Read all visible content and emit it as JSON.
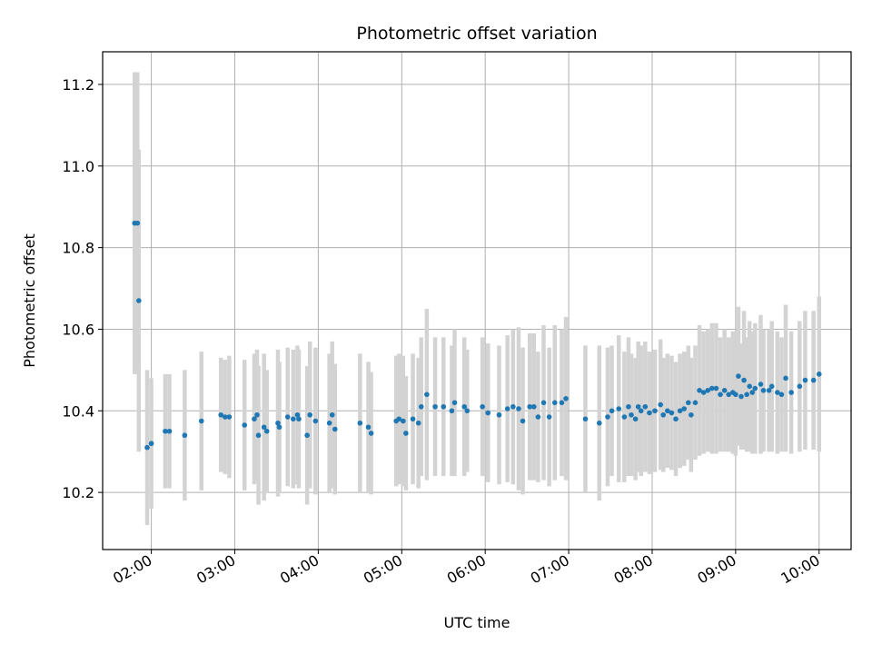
{
  "chart_data": {
    "type": "scatter",
    "title": "Photometric offset variation",
    "xlabel": "UTC time",
    "ylabel": "Photometric offset",
    "x_ticks": [
      "02:00",
      "03:00",
      "04:00",
      "05:00",
      "06:00",
      "07:00",
      "08:00",
      "09:00",
      "10:00"
    ],
    "y_ticks": [
      "10.2",
      "10.4",
      "10.6",
      "10.8",
      "11.0",
      "11.2"
    ],
    "xlim": [
      "01:25",
      "10:23"
    ],
    "ylim": [
      10.06,
      11.28
    ],
    "grid": true,
    "colors": {
      "points": "#1f77b4",
      "errorbars": "#d3d3d3",
      "grid": "#b0b0b0"
    },
    "series": [
      {
        "x": [
          "01:48",
          "01:50",
          "01:51",
          "01:57",
          "02:00",
          "02:10",
          "02:13",
          "02:24",
          "02:36",
          "02:50",
          "02:53",
          "02:56",
          "03:07",
          "03:14",
          "03:16",
          "03:17",
          "03:21",
          "03:23",
          "03:31",
          "03:32",
          "03:38",
          "03:42",
          "03:45",
          "03:46",
          "03:52",
          "03:54",
          "03:58",
          "04:08",
          "04:10",
          "04:12",
          "04:30",
          "04:36",
          "04:38",
          "04:56",
          "04:58",
          "05:01",
          "05:03",
          "05:08",
          "05:12",
          "05:14",
          "05:18",
          "05:24",
          "05:30",
          "05:36",
          "05:38",
          "05:45",
          "05:47",
          "05:58",
          "06:02",
          "06:10",
          "06:16",
          "06:20",
          "06:24",
          "06:27",
          "06:32",
          "06:35",
          "06:38",
          "06:42",
          "06:46",
          "06:50",
          "06:55",
          "06:58",
          "07:12",
          "07:22",
          "07:28",
          "07:31",
          "07:36",
          "07:40",
          "07:43",
          "07:45",
          "07:48",
          "07:50",
          "07:52",
          "07:55",
          "07:58",
          "08:02",
          "08:06",
          "08:08",
          "08:11",
          "08:14",
          "08:17",
          "08:20",
          "08:23",
          "08:26",
          "08:28",
          "08:31",
          "08:34",
          "08:37",
          "08:40",
          "08:43",
          "08:46",
          "08:49",
          "08:52",
          "08:55",
          "08:58",
          "09:00",
          "09:02",
          "09:04",
          "09:06",
          "09:08",
          "09:10",
          "09:12",
          "09:14",
          "09:18",
          "09:20",
          "09:24",
          "09:26",
          "09:30",
          "09:33",
          "09:36",
          "09:40",
          "09:46",
          "09:50",
          "09:56",
          "10:00"
        ],
        "y": [
          10.86,
          10.86,
          10.67,
          10.31,
          10.32,
          10.35,
          10.35,
          10.34,
          10.375,
          10.39,
          10.385,
          10.385,
          10.365,
          10.38,
          10.39,
          10.34,
          10.36,
          10.35,
          10.37,
          10.36,
          10.385,
          10.38,
          10.39,
          10.38,
          10.34,
          10.39,
          10.375,
          10.37,
          10.39,
          10.355,
          10.37,
          10.36,
          10.345,
          10.375,
          10.38,
          10.375,
          10.345,
          10.38,
          10.37,
          10.41,
          10.44,
          10.41,
          10.41,
          10.4,
          10.42,
          10.41,
          10.4,
          10.41,
          10.395,
          10.39,
          10.405,
          10.41,
          10.405,
          10.375,
          10.41,
          10.41,
          10.385,
          10.42,
          10.385,
          10.42,
          10.42,
          10.43,
          10.38,
          10.37,
          10.385,
          10.4,
          10.405,
          10.385,
          10.41,
          10.39,
          10.38,
          10.41,
          10.4,
          10.41,
          10.395,
          10.4,
          10.415,
          10.39,
          10.4,
          10.395,
          10.38,
          10.4,
          10.405,
          10.42,
          10.39,
          10.42,
          10.45,
          10.445,
          10.45,
          10.455,
          10.455,
          10.44,
          10.45,
          10.44,
          10.445,
          10.44,
          10.485,
          10.435,
          10.475,
          10.44,
          10.46,
          10.445,
          10.455,
          10.465,
          10.45,
          10.45,
          10.46,
          10.445,
          10.44,
          10.48,
          10.445,
          10.46,
          10.475,
          10.475,
          10.49
        ],
        "yerr_low": [
          0.37,
          0.37,
          0.37,
          0.19,
          0.16,
          0.14,
          0.14,
          0.16,
          0.17,
          0.14,
          0.14,
          0.15,
          0.16,
          0.16,
          0.16,
          0.17,
          0.18,
          0.15,
          0.18,
          0.16,
          0.17,
          0.17,
          0.17,
          0.17,
          0.17,
          0.18,
          0.18,
          0.17,
          0.18,
          0.16,
          0.17,
          0.16,
          0.15,
          0.16,
          0.16,
          0.16,
          0.14,
          0.16,
          0.16,
          0.17,
          0.21,
          0.17,
          0.17,
          0.16,
          0.18,
          0.17,
          0.15,
          0.17,
          0.17,
          0.17,
          0.18,
          0.19,
          0.2,
          0.18,
          0.18,
          0.18,
          0.16,
          0.19,
          0.17,
          0.19,
          0.18,
          0.2,
          0.18,
          0.19,
          0.17,
          0.16,
          0.18,
          0.16,
          0.17,
          0.15,
          0.15,
          0.16,
          0.16,
          0.16,
          0.15,
          0.15,
          0.16,
          0.14,
          0.14,
          0.14,
          0.14,
          0.14,
          0.14,
          0.14,
          0.14,
          0.14,
          0.16,
          0.15,
          0.15,
          0.16,
          0.16,
          0.14,
          0.15,
          0.14,
          0.15,
          0.15,
          0.17,
          0.13,
          0.17,
          0.14,
          0.16,
          0.15,
          0.16,
          0.17,
          0.15,
          0.15,
          0.16,
          0.15,
          0.14,
          0.18,
          0.15,
          0.16,
          0.17,
          0.17,
          0.19
        ],
        "yerr_high": [
          0.37,
          0.37,
          0.37,
          0.19,
          0.16,
          0.14,
          0.14,
          0.16,
          0.17,
          0.14,
          0.14,
          0.15,
          0.16,
          0.16,
          0.16,
          0.17,
          0.18,
          0.15,
          0.18,
          0.16,
          0.17,
          0.17,
          0.17,
          0.17,
          0.17,
          0.18,
          0.18,
          0.17,
          0.18,
          0.16,
          0.17,
          0.16,
          0.15,
          0.16,
          0.16,
          0.16,
          0.14,
          0.16,
          0.16,
          0.17,
          0.21,
          0.17,
          0.17,
          0.16,
          0.18,
          0.17,
          0.15,
          0.17,
          0.17,
          0.17,
          0.18,
          0.19,
          0.2,
          0.18,
          0.18,
          0.18,
          0.16,
          0.19,
          0.17,
          0.19,
          0.18,
          0.2,
          0.18,
          0.19,
          0.17,
          0.16,
          0.18,
          0.16,
          0.17,
          0.15,
          0.15,
          0.16,
          0.16,
          0.16,
          0.15,
          0.15,
          0.16,
          0.14,
          0.14,
          0.14,
          0.14,
          0.14,
          0.14,
          0.14,
          0.14,
          0.14,
          0.16,
          0.15,
          0.15,
          0.16,
          0.16,
          0.14,
          0.15,
          0.14,
          0.15,
          0.15,
          0.17,
          0.13,
          0.17,
          0.14,
          0.16,
          0.15,
          0.16,
          0.17,
          0.15,
          0.15,
          0.16,
          0.15,
          0.14,
          0.18,
          0.15,
          0.16,
          0.17,
          0.17,
          0.19
        ]
      }
    ]
  }
}
